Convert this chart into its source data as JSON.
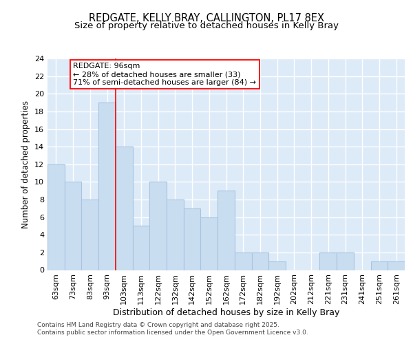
{
  "title_line1": "REDGATE, KELLY BRAY, CALLINGTON, PL17 8EX",
  "title_line2": "Size of property relative to detached houses in Kelly Bray",
  "xlabel": "Distribution of detached houses by size in Kelly Bray",
  "ylabel": "Number of detached properties",
  "categories": [
    "63sqm",
    "73sqm",
    "83sqm",
    "93sqm",
    "103sqm",
    "113sqm",
    "122sqm",
    "132sqm",
    "142sqm",
    "152sqm",
    "162sqm",
    "172sqm",
    "182sqm",
    "192sqm",
    "202sqm",
    "212sqm",
    "221sqm",
    "231sqm",
    "241sqm",
    "251sqm",
    "261sqm"
  ],
  "values": [
    12,
    10,
    8,
    19,
    14,
    5,
    10,
    8,
    7,
    6,
    9,
    2,
    2,
    1,
    0,
    0,
    2,
    2,
    0,
    1,
    1
  ],
  "bar_color": "#c9ddf0",
  "bar_edge_color": "#a8c4de",
  "annotation_text": "REDGATE: 96sqm\n← 28% of detached houses are smaller (33)\n71% of semi-detached houses are larger (84) →",
  "ylim": [
    0,
    24
  ],
  "yticks": [
    0,
    2,
    4,
    6,
    8,
    10,
    12,
    14,
    16,
    18,
    20,
    22,
    24
  ],
  "plot_bg_color": "#ddeaf8",
  "grid_color": "#ffffff",
  "fig_bg_color": "#ffffff",
  "footer_text": "Contains HM Land Registry data © Crown copyright and database right 2025.\nContains public sector information licensed under the Open Government Licence v3.0.",
  "title_fontsize": 10.5,
  "subtitle_fontsize": 9.5,
  "xlabel_fontsize": 9,
  "ylabel_fontsize": 8.5,
  "tick_fontsize": 8,
  "footer_fontsize": 6.5,
  "annot_fontsize": 8,
  "redline_x": 3.5
}
